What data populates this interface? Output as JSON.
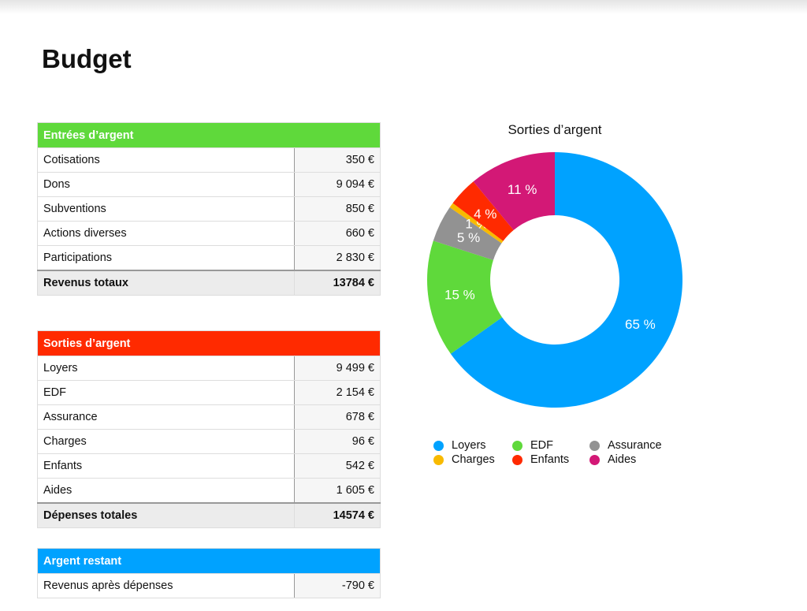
{
  "title": "Budget",
  "income": {
    "header": "Entrées d’argent",
    "color": "#5fd93b",
    "rows": [
      {
        "label": "Cotisations",
        "value": "350 €"
      },
      {
        "label": "Dons",
        "value": "9 094 €"
      },
      {
        "label": "Subventions",
        "value": "850 €"
      },
      {
        "label": "Actions diverses",
        "value": "660 €"
      },
      {
        "label": "Participations",
        "value": "2 830 €"
      }
    ],
    "total": {
      "label": "Revenus totaux",
      "value": "13784 €"
    }
  },
  "expenses": {
    "header": "Sorties d’argent",
    "color": "#ff2a00",
    "rows": [
      {
        "label": "Loyers",
        "value": "9 499 €"
      },
      {
        "label": "EDF",
        "value": "2 154 €"
      },
      {
        "label": "Assurance",
        "value": "678 €"
      },
      {
        "label": "Charges",
        "value": "96 €"
      },
      {
        "label": "Enfants",
        "value": "542 €"
      },
      {
        "label": "Aides",
        "value": "1 605 €"
      }
    ],
    "total": {
      "label": "Dépenses totales",
      "value": "14574 €"
    }
  },
  "remaining": {
    "header": "Argent restant",
    "color": "#00a2ff",
    "rows": [
      {
        "label": "Revenus après dépenses",
        "value": "-790 €"
      }
    ]
  },
  "chart_data": {
    "type": "pie",
    "donut": true,
    "title": "Sorties d’argent",
    "legend": "bottom",
    "categories": [
      "Loyers",
      "EDF",
      "Assurance",
      "Charges",
      "Enfants",
      "Aides"
    ],
    "values": [
      9499,
      2154,
      678,
      96,
      542,
      1605
    ],
    "labels": [
      "65 %",
      "15 %",
      "5 %",
      "1 %",
      "4 %",
      "11 %"
    ],
    "colors": [
      "#00a2ff",
      "#5fd93b",
      "#929292",
      "#f8ba00",
      "#ff2a00",
      "#d31876"
    ]
  }
}
